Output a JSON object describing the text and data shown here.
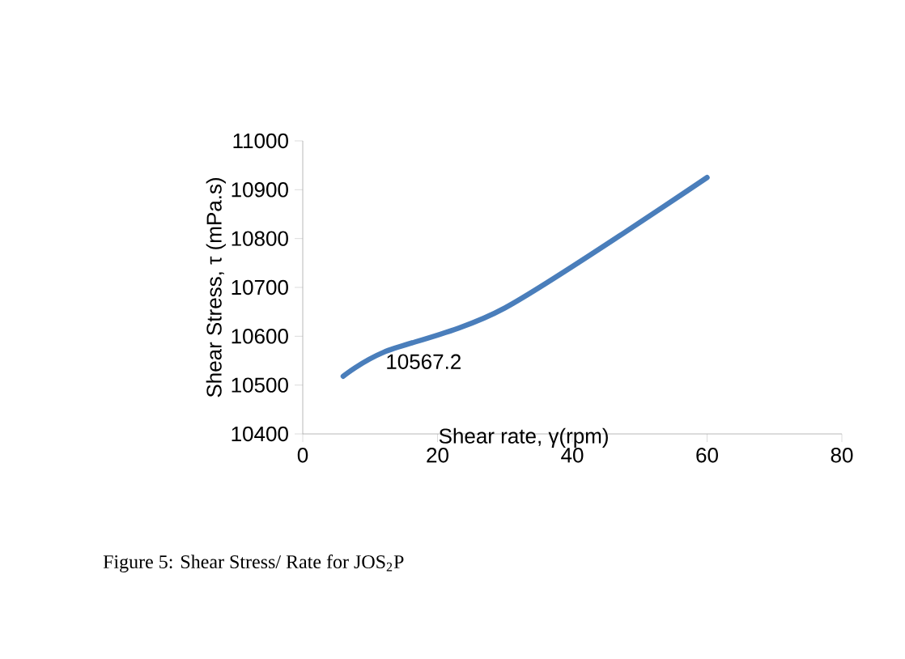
{
  "chart_data": {
    "type": "line",
    "xlabel": "Shear rate, γ(rpm)",
    "ylabel": "Shear Stress, τ (mPa.s)",
    "x": [
      6,
      12,
      30,
      60
    ],
    "series": [
      {
        "color": "#4a7ebb",
        "values": [
          10518,
          10567.2,
          10658,
          10925
        ],
        "value_labels": [
          null,
          "10567.2",
          null,
          null
        ]
      }
    ],
    "xlim": [
      0,
      80
    ],
    "xticks": [
      0,
      20,
      40,
      60,
      80
    ],
    "ylim": [
      10400,
      11000
    ],
    "yticks": [
      10400,
      10500,
      10600,
      10700,
      10800,
      10900,
      11000
    ],
    "grid": false,
    "marker": "none",
    "line_style": "solid",
    "annotations": [
      "Figure 5: Shear Stress/ Rate for  JOS$_{2}$P"
    ]
  }
}
